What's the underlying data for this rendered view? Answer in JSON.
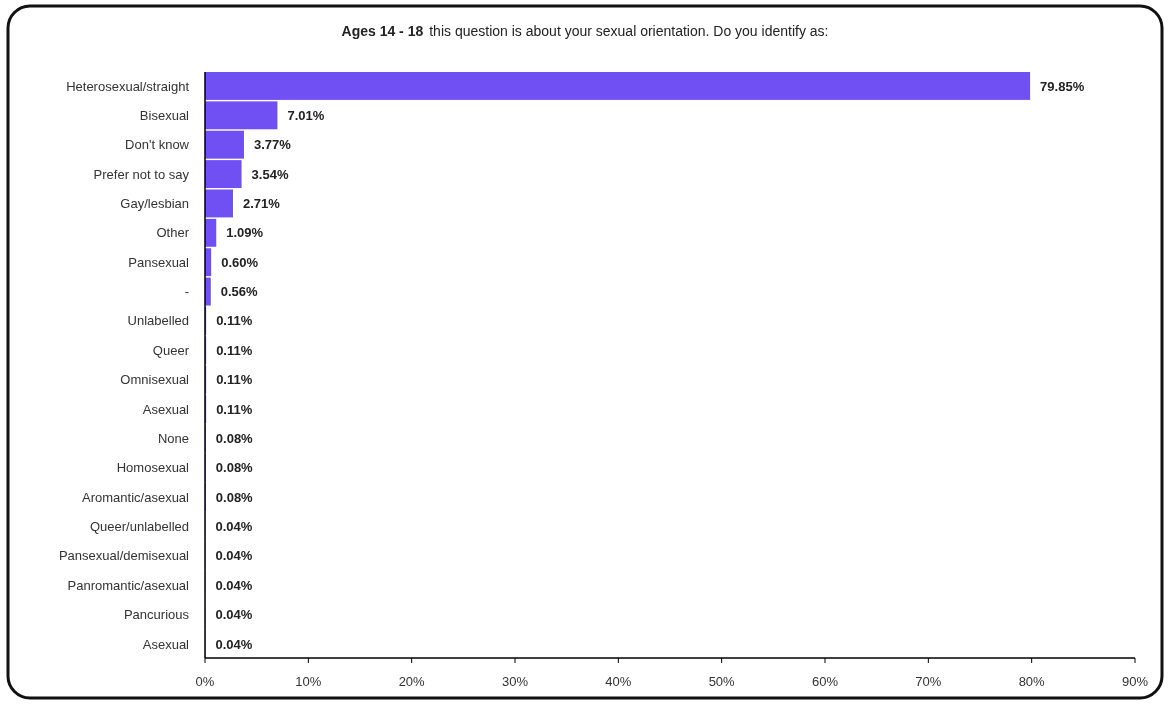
{
  "chart_data": {
    "type": "bar",
    "orientation": "horizontal",
    "title": "Ages 14 - 18",
    "subtitle": "this question is about your sexual orientation. Do you identify as:",
    "categories": [
      "Heterosexual/straight",
      "Bisexual",
      "Don't know",
      "Prefer not to say",
      "Gay/lesbian",
      "Other",
      "Pansexual",
      "-",
      "Unlabelled",
      "Queer",
      "Omnisexual",
      "Asexual",
      "None",
      "Homosexual",
      "Aromantic/asexual",
      "Queer/unlabelled",
      "Pansexual/demisexual",
      "Panromantic/asexual",
      "Pancurious",
      "Asexual"
    ],
    "values": [
      79.85,
      7.01,
      3.77,
      3.54,
      2.71,
      1.09,
      0.6,
      0.56,
      0.11,
      0.11,
      0.11,
      0.11,
      0.08,
      0.08,
      0.08,
      0.04,
      0.04,
      0.04,
      0.04,
      0.04
    ],
    "value_labels": [
      "79.85%",
      "7.01%",
      "3.77%",
      "3.54%",
      "2.71%",
      "1.09%",
      "0.60%",
      "0.56%",
      "0.11%",
      "0.11%",
      "0.11%",
      "0.11%",
      "0.08%",
      "0.08%",
      "0.08%",
      "0.04%",
      "0.04%",
      "0.04%",
      "0.04%",
      "0.04%"
    ],
    "color": "#7050f2",
    "xlim": [
      0,
      90
    ],
    "xticks": [
      {
        "value": 0,
        "label": "0%"
      },
      {
        "value": 10,
        "label": "10%"
      },
      {
        "value": 20,
        "label": "20%"
      },
      {
        "value": 30,
        "label": "30%"
      },
      {
        "value": 40,
        "label": "40%"
      },
      {
        "value": 50,
        "label": "50%"
      },
      {
        "value": 60,
        "label": "60%"
      },
      {
        "value": 70,
        "label": "70%"
      },
      {
        "value": 80,
        "label": "80%"
      },
      {
        "value": 90,
        "label": "90%"
      }
    ],
    "grid": false
  }
}
